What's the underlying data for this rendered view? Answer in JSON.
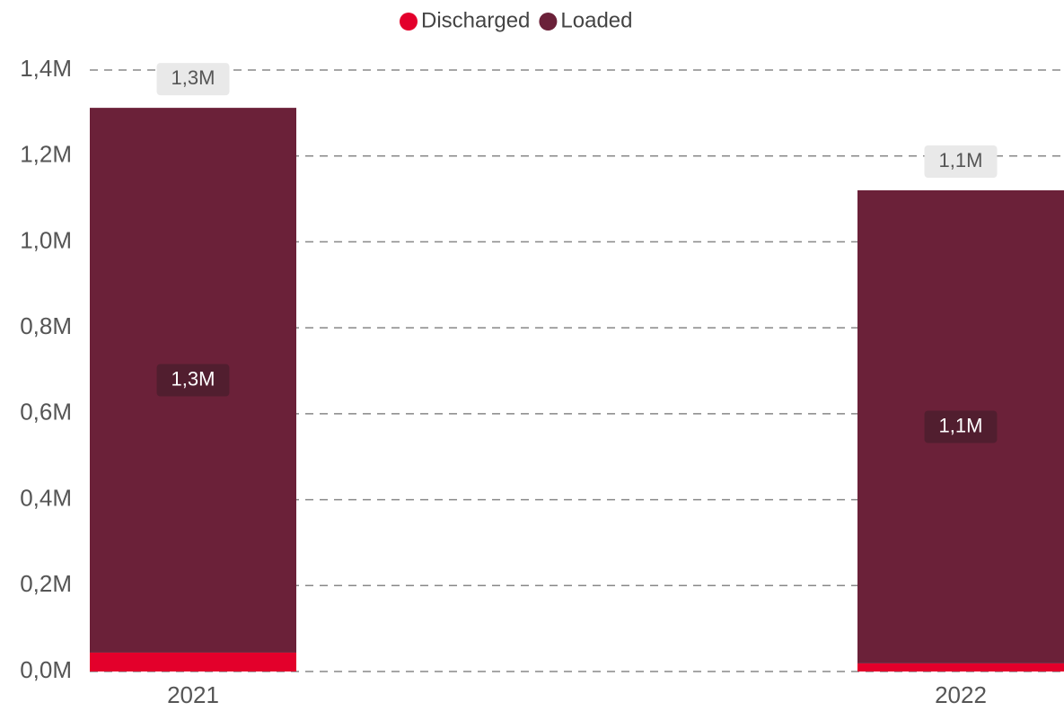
{
  "chart_data": {
    "type": "stacked_bar",
    "categories": [
      "2021",
      "2022"
    ],
    "series": [
      {
        "name": "Discharged",
        "color": "#e3002b",
        "values": [
          44000,
          19000
        ]
      },
      {
        "name": "Loaded",
        "color": "#6b2139",
        "values": [
          1268000,
          1101000
        ],
        "value_labels": [
          "1,3M",
          "1,1M"
        ]
      }
    ],
    "totals": [
      1312000,
      1120000
    ],
    "total_labels": [
      "1,3M",
      "1,1M"
    ],
    "ylim": [
      0,
      1400000
    ],
    "yticks": [
      {
        "value": 0,
        "label": "0,0M"
      },
      {
        "value": 200000,
        "label": "0,2M"
      },
      {
        "value": 400000,
        "label": "0,4M"
      },
      {
        "value": 600000,
        "label": "0,6M"
      },
      {
        "value": 800000,
        "label": "0,8M"
      },
      {
        "value": 1000000,
        "label": "1,0M"
      },
      {
        "value": 1200000,
        "label": "1,2M"
      },
      {
        "value": 1400000,
        "label": "1,4M"
      }
    ],
    "grid": true,
    "legend": "top"
  }
}
